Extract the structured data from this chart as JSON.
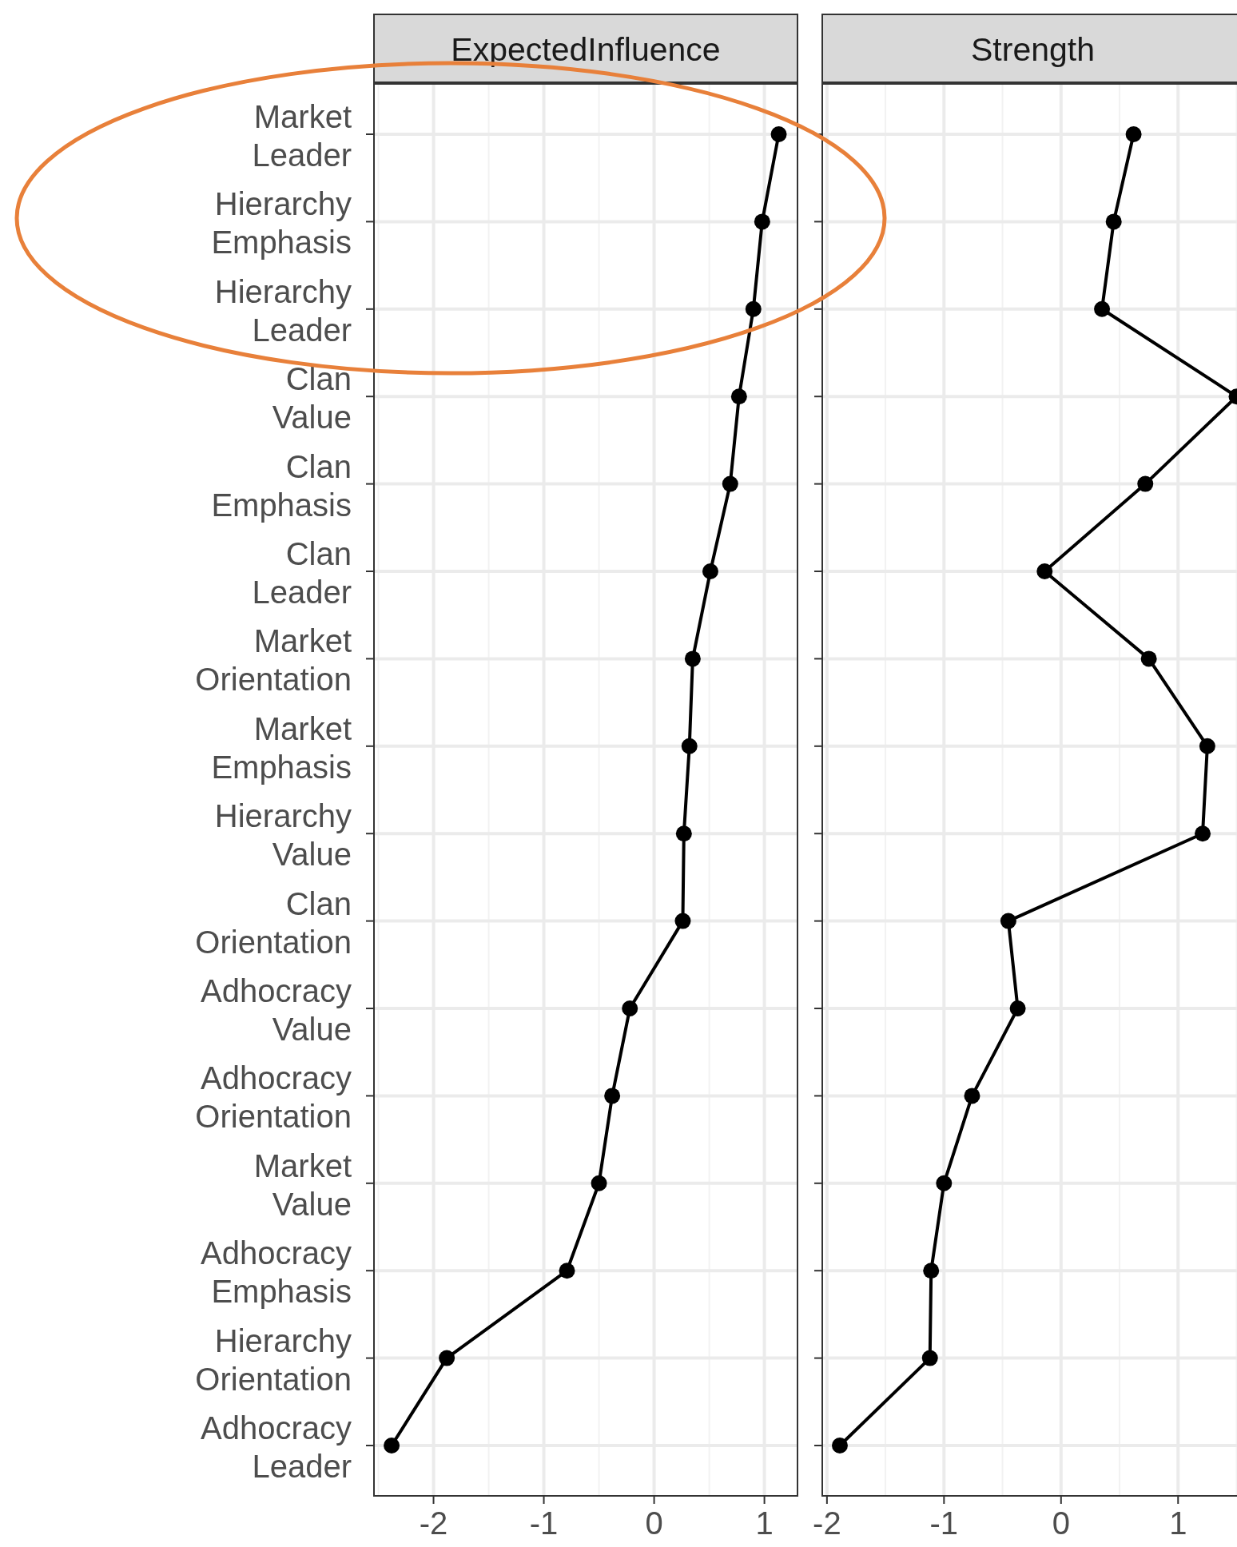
{
  "chart_data": [
    {
      "type": "line",
      "title": "ExpectedInfluence",
      "orientation": "horizontal",
      "categories": [
        "Market Leader",
        "Hierarchy Emphasis",
        "Hierarchy Leader",
        "Clan Value",
        "Clan Emphasis",
        "Clan Leader",
        "Market Orientation",
        "Market Emphasis",
        "Hierarchy Value",
        "Clan Orientation",
        "Adhocracy Value",
        "Adhocracy Orientation",
        "Market Value",
        "Adhocracy Emphasis",
        "Hierarchy Orientation",
        "Adhocracy Leader"
      ],
      "series": [
        {
          "color": "#000000",
          "values": [
            1.13,
            0.98,
            0.9,
            0.77,
            0.69,
            0.51,
            0.35,
            0.32,
            0.27,
            0.26,
            -0.22,
            -0.38,
            -0.5,
            -0.79,
            -1.88,
            -2.38
          ]
        }
      ],
      "xlim": [
        -2.54,
        1.3
      ],
      "xticks": [
        -2,
        -1,
        0,
        1
      ],
      "grid": true,
      "marker": "circle"
    },
    {
      "type": "line",
      "title": "Strength",
      "orientation": "horizontal",
      "categories": [
        null,
        null,
        null,
        null,
        null,
        null,
        null,
        null,
        null,
        null,
        null,
        null,
        null,
        null,
        null,
        null
      ],
      "series": [
        {
          "color": "#000000",
          "values": [
            0.62,
            0.45,
            0.35,
            1.5,
            0.72,
            -0.14,
            0.75,
            1.25,
            1.21,
            -0.45,
            -0.37,
            -0.76,
            -1.0,
            -1.11,
            -1.12,
            -1.89
          ]
        }
      ],
      "xlim": [
        -2.04,
        1.64
      ],
      "xticks": [
        -2,
        -1,
        0,
        1
      ],
      "grid": true,
      "marker": "circle",
      "tick_labels": "x"
    }
  ]
}
